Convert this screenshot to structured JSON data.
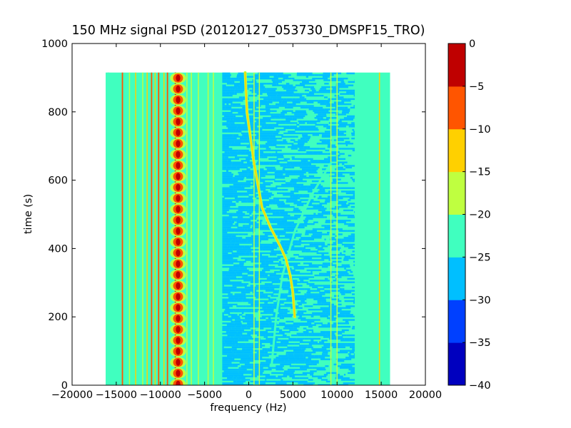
{
  "chart_data": {
    "type": "heatmap",
    "title": "150 MHz signal PSD (20120127_053730_DMSPF15_TRO)",
    "xlabel": "frequency (Hz)",
    "ylabel": "time (s)",
    "xlim": [
      -20000,
      20000
    ],
    "ylim": [
      0,
      1000
    ],
    "x_ticks": [
      -20000,
      -15000,
      -10000,
      -5000,
      0,
      5000,
      10000,
      15000,
      20000
    ],
    "y_ticks": [
      0,
      200,
      400,
      600,
      800,
      1000
    ],
    "data_extent": {
      "freq_min": -16000,
      "freq_max": 16000,
      "time_min": 0,
      "time_max": 915
    },
    "grid": false,
    "colorbar": {
      "levels": [
        -40,
        -35,
        -30,
        -25,
        -20,
        -15,
        -10,
        -5,
        0
      ],
      "tick_labels": [
        "−40",
        "−35",
        "−30",
        "−25",
        "−20",
        "−15",
        "−10",
        "−5",
        "0"
      ],
      "colors": [
        "#0000bf",
        "#0040ff",
        "#00bfff",
        "#40ffbf",
        "#bfff40",
        "#ffd000",
        "#ff5500",
        "#bf0000"
      ]
    },
    "background_level": -22.5,
    "noise_region": {
      "freq_min": -3000,
      "freq_max": 12000,
      "dominant_level": -27.5
    },
    "doppler_trace": [
      {
        "freq": -400,
        "time": 915
      },
      {
        "freq": -200,
        "time": 800
      },
      {
        "freq": 600,
        "time": 650
      },
      {
        "freq": 1500,
        "time": 520
      },
      {
        "freq": 2500,
        "time": 460
      },
      {
        "freq": 3500,
        "time": 410
      },
      {
        "freq": 4200,
        "time": 370
      },
      {
        "freq": 4700,
        "time": 320
      },
      {
        "freq": 5000,
        "time": 270
      },
      {
        "freq": 5200,
        "time": 200
      }
    ],
    "faint_trace": [
      {
        "freq": 2600,
        "time": 60
      },
      {
        "freq": 3100,
        "time": 200
      },
      {
        "freq": 3800,
        "time": 320
      },
      {
        "freq": 5200,
        "time": 450
      },
      {
        "freq": 7200,
        "time": 560
      },
      {
        "freq": 9300,
        "time": 650
      }
    ],
    "vertical_lines": [
      {
        "freq": -16000,
        "level": -22.5,
        "width_hz": 400
      },
      {
        "freq": -14300,
        "level": -7.5,
        "width_hz": 150
      },
      {
        "freq": -13500,
        "level": -17.5,
        "width_hz": 100
      },
      {
        "freq": -12800,
        "level": -12.5,
        "width_hz": 120
      },
      {
        "freq": -12000,
        "level": -17.5,
        "width_hz": 100
      },
      {
        "freq": -11500,
        "level": -12.5,
        "width_hz": 120
      },
      {
        "freq": -11000,
        "level": -7.5,
        "width_hz": 150
      },
      {
        "freq": -10600,
        "level": -12.5,
        "width_hz": 120
      },
      {
        "freq": -10200,
        "level": -7.5,
        "width_hz": 150
      },
      {
        "freq": -9600,
        "level": -12.5,
        "width_hz": 120
      },
      {
        "freq": -9200,
        "level": -7.5,
        "width_hz": 150
      },
      {
        "freq": -8300,
        "level": -2.5,
        "width_hz": 160
      },
      {
        "freq": -7900,
        "level": -12.5,
        "width_hz": 140
      },
      {
        "freq": -7000,
        "level": -17.5,
        "width_hz": 120
      },
      {
        "freq": -6500,
        "level": -17.5,
        "width_hz": 120
      },
      {
        "freq": -5700,
        "level": -17.5,
        "width_hz": 100
      },
      {
        "freq": -4600,
        "level": -17.5,
        "width_hz": 100
      },
      {
        "freq": -4000,
        "level": -17.5,
        "width_hz": 100
      },
      {
        "freq": 600,
        "level": -17.5,
        "width_hz": 120
      },
      {
        "freq": 1200,
        "level": -17.5,
        "width_hz": 120
      },
      {
        "freq": 9300,
        "level": -17.5,
        "width_hz": 120
      },
      {
        "freq": 10000,
        "level": -17.5,
        "width_hz": 100
      },
      {
        "freq": 14800,
        "level": -12.5,
        "width_hz": 120
      }
    ],
    "oscillation_band": {
      "freq_min": -8900,
      "freq_max": -7100,
      "level": -7.5,
      "period_s": 32
    }
  }
}
